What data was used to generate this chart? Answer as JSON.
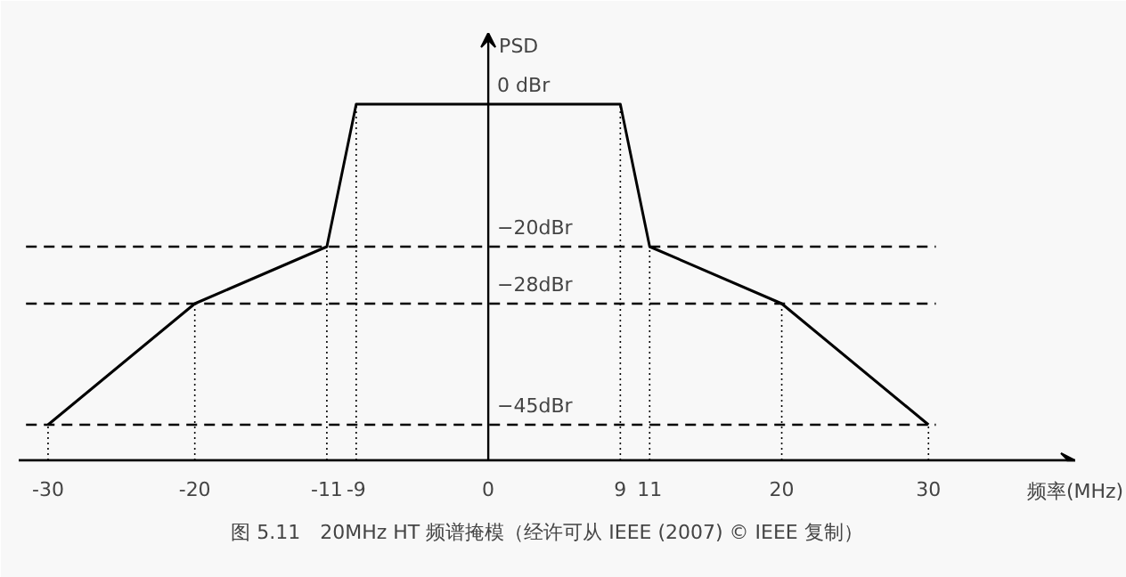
{
  "chart_data": {
    "type": "line",
    "x": [
      -30,
      -20,
      -11,
      -9,
      9,
      11,
      20,
      30
    ],
    "series": [
      {
        "color": "#000000",
        "values": [
          -45,
          -28,
          -20,
          0,
          0,
          -20,
          -28,
          -45
        ]
      }
    ],
    "xlim": [
      -32,
      40
    ],
    "ylim": [
      -50,
      10
    ],
    "xticks": [
      -30,
      -20,
      -11,
      -9,
      0,
      9,
      11,
      20,
      30
    ],
    "yticks": [
      {
        "value": 0,
        "label": "0 dBr"
      },
      {
        "value": -20,
        "label": "−20dBr"
      },
      {
        "value": -28,
        "label": "−28dBr"
      },
      {
        "value": -45,
        "label": "−45dBr"
      }
    ],
    "xlabel": "频率(MHz)",
    "ylabel": "PSD",
    "ref_lines": [
      {
        "axis": "y",
        "value": -20,
        "line_style": "dashed"
      },
      {
        "axis": "y",
        "value": -28,
        "line_style": "dashed"
      },
      {
        "axis": "y",
        "value": -45,
        "line_style": "dashed"
      },
      {
        "axis": "x",
        "value": -30,
        "line_style": "dotted"
      },
      {
        "axis": "x",
        "value": -20,
        "line_style": "dotted"
      },
      {
        "axis": "x",
        "value": -11,
        "line_style": "dotted"
      },
      {
        "axis": "x",
        "value": -9,
        "line_style": "dotted"
      },
      {
        "axis": "x",
        "value": 9,
        "line_style": "dotted"
      },
      {
        "axis": "x",
        "value": 11,
        "line_style": "dotted"
      },
      {
        "axis": "x",
        "value": 20,
        "line_style": "dotted"
      },
      {
        "axis": "x",
        "value": 30,
        "line_style": "dotted"
      }
    ],
    "annotations": [
      "图 5.11　20MHz HT 频谱掩模（经许可从 IEEE (2007) © IEEE 复制）"
    ],
    "grid": false,
    "marker": "none",
    "line_style": "solid"
  }
}
